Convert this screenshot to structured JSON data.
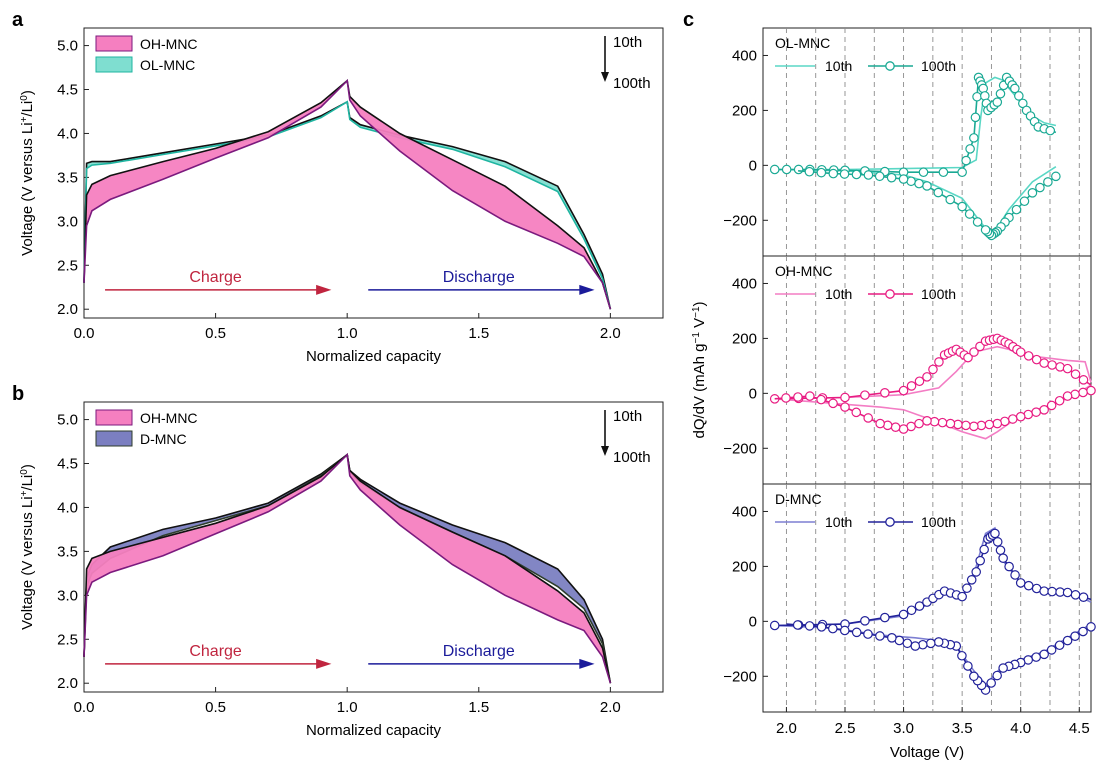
{
  "panel_labels": {
    "a": "a",
    "b": "b",
    "c": "c"
  },
  "colors": {
    "pink_fill": "#f57fc0",
    "purple_line": "#7b1a7e",
    "black": "#111111",
    "teal_fill": "#7fded0",
    "teal_line": "#1fb5a1",
    "navy_fill": "#7b7fc1",
    "navy_line": "#2f3e2c",
    "charge_arrow": "#c0253f",
    "discharge_arrow": "#1b1b9a",
    "ol_10": "#5ad7c5",
    "ol_100": "#1aa994",
    "oh_10": "#f37dc4",
    "oh_100": "#e81c82",
    "d_10": "#7d7fd2",
    "d_100": "#22229a",
    "grid": "#8c8c8c"
  },
  "chart_data": [
    {
      "type": "area",
      "panel": "a",
      "xlabel": "Normalized capacity",
      "ylabel_text": "Voltage (V versus Li",
      "ylabel_sup1": "+",
      "ylabel_mid": "/Li",
      "ylabel_sup2": "0",
      "ylabel_end": ")",
      "xlim": [
        0,
        2.2
      ],
      "ylim": [
        1.9,
        5.2
      ],
      "xticks": [
        "0.0",
        "0.5",
        "1.0",
        "1.5",
        "2.0"
      ],
      "yticks": [
        "2.0",
        "2.5",
        "3.0",
        "3.5",
        "4.0",
        "4.5",
        "5.0"
      ],
      "legend": [
        "OH-MNC",
        "OL-MNC"
      ],
      "cycle_top": "10th",
      "cycle_bottom": "100th",
      "charge_label": "Charge",
      "discharge_label": "Discharge",
      "series": [
        {
          "name": "OH-MNC",
          "cycle": "10th",
          "x": [
            0,
            0.01,
            0.03,
            0.1,
            0.3,
            0.5,
            0.7,
            0.9,
            1.0,
            1.01,
            1.05,
            1.2,
            1.4,
            1.6,
            1.8,
            1.9,
            1.97,
            2.0
          ],
          "y": [
            2.3,
            3.3,
            3.42,
            3.52,
            3.68,
            3.83,
            4.02,
            4.35,
            4.6,
            4.42,
            4.3,
            4.0,
            3.7,
            3.4,
            2.95,
            2.7,
            2.3,
            2.0
          ]
        },
        {
          "name": "OH-MNC",
          "cycle": "100th",
          "x": [
            0,
            0.01,
            0.03,
            0.1,
            0.3,
            0.5,
            0.7,
            0.9,
            1.0,
            1.01,
            1.05,
            1.2,
            1.4,
            1.6,
            1.8,
            1.9,
            1.97,
            2.0
          ],
          "y": [
            2.3,
            2.95,
            3.12,
            3.25,
            3.48,
            3.72,
            3.95,
            4.3,
            4.6,
            4.38,
            4.2,
            3.8,
            3.35,
            3.0,
            2.75,
            2.6,
            2.3,
            2.0
          ]
        },
        {
          "name": "OL-MNC",
          "cycle": "10th",
          "x": [
            0,
            0.01,
            0.03,
            0.1,
            0.3,
            0.5,
            0.7,
            0.9,
            1.0,
            1.01,
            1.05,
            1.2,
            1.4,
            1.6,
            1.8,
            1.9,
            1.97,
            2.0
          ],
          "y": [
            2.3,
            3.66,
            3.68,
            3.68,
            3.78,
            3.88,
            3.98,
            4.2,
            4.36,
            4.18,
            4.1,
            3.98,
            3.85,
            3.68,
            3.4,
            2.85,
            2.4,
            2.0
          ]
        },
        {
          "name": "OL-MNC",
          "cycle": "100th",
          "x": [
            0,
            0.01,
            0.03,
            0.1,
            0.3,
            0.5,
            0.7,
            0.9,
            1.0,
            1.01,
            1.05,
            1.2,
            1.4,
            1.6,
            1.8,
            1.9,
            1.97,
            2.0
          ],
          "y": [
            2.3,
            3.6,
            3.64,
            3.66,
            3.76,
            3.86,
            3.96,
            4.18,
            4.36,
            4.16,
            4.07,
            3.95,
            3.82,
            3.62,
            3.34,
            2.8,
            2.35,
            2.0
          ]
        }
      ]
    },
    {
      "type": "area",
      "panel": "b",
      "xlabel": "Normalized capacity",
      "ylabel_text": "Voltage (V versus Li",
      "ylabel_sup1": "+",
      "ylabel_mid": "/Li",
      "ylabel_sup2": "0",
      "ylabel_end": ")",
      "xlim": [
        0,
        2.2
      ],
      "ylim": [
        1.9,
        5.2
      ],
      "xticks": [
        "0.0",
        "0.5",
        "1.0",
        "1.5",
        "2.0"
      ],
      "yticks": [
        "2.0",
        "2.5",
        "3.0",
        "3.5",
        "4.0",
        "4.5",
        "5.0"
      ],
      "legend": [
        "OH-MNC",
        "D-MNC"
      ],
      "cycle_top": "10th",
      "cycle_bottom": "100th",
      "charge_label": "Charge",
      "discharge_label": "Discharge",
      "series": [
        {
          "name": "OH-MNC",
          "cycle": "10th",
          "x": [
            0,
            0.01,
            0.03,
            0.1,
            0.3,
            0.5,
            0.7,
            0.9,
            1.0,
            1.01,
            1.05,
            1.2,
            1.4,
            1.6,
            1.8,
            1.9,
            1.97,
            2.0
          ],
          "y": [
            2.3,
            3.3,
            3.42,
            3.5,
            3.66,
            3.82,
            4.02,
            4.35,
            4.6,
            4.42,
            4.3,
            4.0,
            3.72,
            3.45,
            3.05,
            2.8,
            2.4,
            2.0
          ]
        },
        {
          "name": "OH-MNC",
          "cycle": "100th",
          "x": [
            0,
            0.01,
            0.03,
            0.1,
            0.3,
            0.5,
            0.7,
            0.9,
            1.0,
            1.01,
            1.05,
            1.2,
            1.4,
            1.6,
            1.8,
            1.9,
            1.97,
            2.0
          ],
          "y": [
            2.3,
            3.0,
            3.15,
            3.26,
            3.45,
            3.7,
            3.95,
            4.3,
            4.6,
            4.36,
            4.2,
            3.8,
            3.35,
            3.0,
            2.72,
            2.6,
            2.3,
            2.0
          ]
        },
        {
          "name": "D-MNC",
          "cycle": "10th",
          "x": [
            0,
            0.01,
            0.03,
            0.1,
            0.3,
            0.5,
            0.7,
            0.9,
            1.0,
            1.01,
            1.05,
            1.2,
            1.4,
            1.6,
            1.8,
            1.9,
            1.97,
            2.0
          ],
          "y": [
            2.3,
            3.2,
            3.35,
            3.55,
            3.75,
            3.88,
            4.05,
            4.38,
            4.6,
            4.42,
            4.32,
            4.05,
            3.8,
            3.6,
            3.3,
            2.95,
            2.5,
            2.0
          ]
        },
        {
          "name": "D-MNC",
          "cycle": "100th",
          "x": [
            0,
            0.01,
            0.03,
            0.1,
            0.3,
            0.5,
            0.7,
            0.9,
            1.0,
            1.01,
            1.05,
            1.2,
            1.4,
            1.6,
            1.8,
            1.9,
            1.97,
            2.0
          ],
          "y": [
            2.3,
            3.1,
            3.25,
            3.42,
            3.68,
            3.85,
            4.02,
            4.36,
            4.6,
            4.4,
            4.28,
            4.0,
            3.72,
            3.45,
            3.1,
            2.85,
            2.45,
            2.0
          ]
        }
      ]
    },
    {
      "type": "line",
      "panel": "c",
      "xlabel": "Voltage (V)",
      "ylabel_text": "dQ/dV (mAh g",
      "ylabel_sup1": "−1",
      "ylabel_mid": " V",
      "ylabel_sup2": "−1",
      "ylabel_end": ")",
      "xlim": [
        1.8,
        4.6
      ],
      "xticks": [
        "2.0",
        "2.5",
        "3.0",
        "3.5",
        "4.0",
        "4.5"
      ],
      "vlines": [
        2.0,
        2.25,
        2.5,
        2.75,
        3.0,
        3.25,
        3.5,
        3.75,
        4.0,
        4.25,
        4.5
      ],
      "subplots": [
        {
          "name": "OL-MNC",
          "ylim": [
            -330,
            500
          ],
          "yticks": [
            "400",
            "200",
            "0",
            "−200"
          ],
          "ytick_values": [
            400,
            200,
            0,
            -200
          ],
          "legend": [
            "10th",
            "100th"
          ],
          "series": [
            {
              "name": "10th",
              "x": [
                1.9,
                2.5,
                3.0,
                3.5,
                3.62,
                3.66,
                3.7,
                3.78,
                3.85,
                3.9,
                4.0,
                4.1,
                4.2,
                4.3
              ],
              "y": [
                -15,
                -15,
                -12,
                -8,
                20,
                180,
                300,
                320,
                310,
                280,
                230,
                180,
                155,
                145
              ]
            },
            {
              "name": "10th-discharge",
              "x": [
                4.3,
                4.1,
                3.9,
                3.78,
                3.74,
                3.7,
                3.5,
                3.2,
                3.0,
                2.5,
                1.9
              ],
              "y": [
                -5,
                -60,
                -160,
                -240,
                -255,
                -230,
                -120,
                -60,
                -35,
                -20,
                -15
              ]
            },
            {
              "name": "100th",
              "x": [
                1.9,
                2.2,
                2.5,
                3.0,
                3.5,
                3.6,
                3.64,
                3.68,
                3.72,
                3.8,
                3.88,
                3.95,
                4.05,
                4.15,
                4.3
              ],
              "y": [
                -15,
                -15,
                -18,
                -25,
                -25,
                100,
                320,
                280,
                200,
                230,
                320,
                280,
                200,
                140,
                120
              ]
            },
            {
              "name": "100th-discharge",
              "x": [
                4.3,
                4.1,
                3.9,
                3.8,
                3.75,
                3.7,
                3.5,
                3.2,
                3.0,
                2.7,
                2.4,
                2.1
              ],
              "y": [
                -40,
                -100,
                -190,
                -240,
                -255,
                -235,
                -150,
                -75,
                -50,
                -35,
                -30,
                -20
              ]
            }
          ]
        },
        {
          "name": "OH-MNC",
          "ylim": [
            -330,
            500
          ],
          "yticks": [
            "400",
            "200",
            "0",
            "−200"
          ],
          "ytick_values": [
            400,
            200,
            0,
            -200
          ],
          "legend": [
            "10th",
            "100th"
          ],
          "series": [
            {
              "name": "10th",
              "x": [
                1.9,
                2.5,
                3.0,
                3.3,
                3.45,
                3.6,
                3.7,
                3.8,
                3.9,
                4.0,
                4.2,
                4.4,
                4.55,
                4.6
              ],
              "y": [
                -20,
                -15,
                -5,
                20,
                80,
                150,
                160,
                170,
                160,
                140,
                130,
                120,
                115,
                40
              ]
            },
            {
              "name": "10th-discharge",
              "x": [
                4.6,
                4.45,
                4.2,
                4.0,
                3.8,
                3.7,
                3.5,
                3.2,
                3.0,
                2.8,
                2.5,
                2.2,
                1.9
              ],
              "y": [
                30,
                -10,
                -50,
                -80,
                -140,
                -165,
                -140,
                -90,
                -60,
                -50,
                -40,
                -30,
                -20
              ]
            },
            {
              "name": "100th",
              "x": [
                1.9,
                2.5,
                3.0,
                3.2,
                3.35,
                3.45,
                3.55,
                3.7,
                3.8,
                3.9,
                4.0,
                4.2,
                4.4,
                4.6
              ],
              "y": [
                -20,
                -15,
                10,
                60,
                140,
                160,
                130,
                190,
                200,
                180,
                150,
                110,
                90,
                30
              ]
            },
            {
              "name": "100th-discharge",
              "x": [
                4.6,
                4.4,
                4.2,
                4.0,
                3.8,
                3.6,
                3.4,
                3.2,
                3.0,
                2.8,
                2.5,
                2.2,
                1.9
              ],
              "y": [
                10,
                -10,
                -60,
                -85,
                -110,
                -120,
                -110,
                -100,
                -130,
                -110,
                -50,
                -10,
                -20
              ]
            }
          ]
        },
        {
          "name": "D-MNC",
          "ylim": [
            -330,
            500
          ],
          "yticks": [
            "400",
            "200",
            "0",
            "−200"
          ],
          "ytick_values": [
            400,
            200,
            0,
            -200
          ],
          "legend": [
            "10th",
            "100th"
          ],
          "series": [
            {
              "name": "10th",
              "x": [
                1.9,
                2.5,
                3.0,
                3.2,
                3.35,
                3.5,
                3.62,
                3.7,
                3.78,
                3.85,
                4.0,
                4.2,
                4.4,
                4.6
              ],
              "y": [
                -15,
                -10,
                20,
                60,
                100,
                80,
                200,
                320,
                340,
                220,
                140,
                120,
                110,
                70
              ]
            },
            {
              "name": "10th-discharge",
              "x": [
                4.6,
                4.4,
                4.2,
                4.0,
                3.85,
                3.7,
                3.6,
                3.45,
                3.3,
                3.1,
                2.8,
                2.4,
                1.9
              ],
              "y": [
                -10,
                -60,
                -110,
                -140,
                -160,
                -230,
                -180,
                -90,
                -70,
                -60,
                -50,
                -25,
                -15
              ]
            },
            {
              "name": "100th",
              "x": [
                1.9,
                2.5,
                3.0,
                3.2,
                3.35,
                3.5,
                3.62,
                3.72,
                3.78,
                3.85,
                4.0,
                4.2,
                4.4,
                4.6
              ],
              "y": [
                -15,
                -10,
                25,
                70,
                110,
                90,
                180,
                300,
                320,
                230,
                140,
                110,
                105,
                80
              ]
            },
            {
              "name": "100th-discharge",
              "x": [
                4.6,
                4.4,
                4.2,
                4.0,
                3.85,
                3.7,
                3.6,
                3.45,
                3.3,
                3.1,
                2.9,
                2.6,
                2.3,
                2.0
              ],
              "y": [
                -20,
                -70,
                -120,
                -150,
                -170,
                -250,
                -200,
                -90,
                -75,
                -90,
                -60,
                -40,
                -20,
                -10
              ]
            }
          ]
        }
      ]
    }
  ]
}
